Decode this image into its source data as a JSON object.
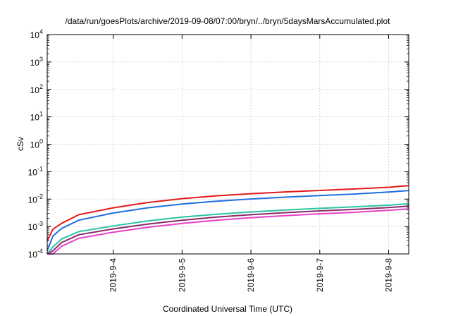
{
  "chart_data": {
    "type": "line",
    "title": "/data/run/goesPlots/archive/2019-09-08/07:00/bryn/../bryn/5daysMarsAccumulated.plot",
    "xlabel": "Coordinated Universal Time (UTC)",
    "ylabel": "cSv",
    "y_scale": "log",
    "ylim": [
      0.0001,
      10000
    ],
    "xlim": [
      "2019-09-03T01:00",
      "2019-09-08T07:00"
    ],
    "grid": true,
    "x_ticks": [
      "2019-9-4",
      "2019-9-5",
      "2019-9-6",
      "2019-9-7",
      "2019-9-8"
    ],
    "y_ticks": [
      {
        "base": "10",
        "exp": "-4"
      },
      {
        "base": "10",
        "exp": "-3"
      },
      {
        "base": "10",
        "exp": "-2"
      },
      {
        "base": "10",
        "exp": "-1"
      },
      {
        "base": "10",
        "exp": "0"
      },
      {
        "base": "10",
        "exp": "1"
      },
      {
        "base": "10",
        "exp": "2"
      },
      {
        "base": "10",
        "exp": "3"
      },
      {
        "base": "10",
        "exp": "4"
      }
    ],
    "x": [
      "2019-09-03T01:00",
      "2019-09-03T03:00",
      "2019-09-03T06:00",
      "2019-09-03T12:00",
      "2019-09-04T00:00",
      "2019-09-04T12:00",
      "2019-09-05T00:00",
      "2019-09-05T12:00",
      "2019-09-06T00:00",
      "2019-09-06T12:00",
      "2019-09-07T00:00",
      "2019-09-07T12:00",
      "2019-09-08T00:00",
      "2019-09-08T07:00"
    ],
    "series": [
      {
        "color": "#e31a1c",
        "values": [
          0.0003,
          0.0008,
          0.0013,
          0.0027,
          0.0048,
          0.0075,
          0.0104,
          0.0132,
          0.0157,
          0.0182,
          0.0207,
          0.0234,
          0.027,
          0.031
        ]
      },
      {
        "color": "#1f6fe0",
        "values": [
          0.00013,
          0.00045,
          0.00085,
          0.0017,
          0.0031,
          0.0048,
          0.0066,
          0.0084,
          0.0101,
          0.0118,
          0.0135,
          0.0153,
          0.018,
          0.0205
        ]
      },
      {
        "color": "#2bc4a0",
        "values": [
          6e-05,
          0.00018,
          0.00035,
          0.00065,
          0.00105,
          0.0016,
          0.0022,
          0.0028,
          0.0034,
          0.004,
          0.0046,
          0.0052,
          0.006,
          0.0068
        ]
      },
      {
        "color": "#8b2a6b",
        "values": [
          4e-05,
          0.00013,
          0.00026,
          0.0005,
          0.00082,
          0.00122,
          0.0017,
          0.0022,
          0.0027,
          0.0032,
          0.0037,
          0.0042,
          0.0049,
          0.0055
        ]
      },
      {
        "color": "#e840c8",
        "values": [
          3e-05,
          9e-05,
          0.00019,
          0.00037,
          0.00062,
          0.00094,
          0.0013,
          0.0017,
          0.0021,
          0.0025,
          0.0029,
          0.0033,
          0.0039,
          0.0044
        ]
      }
    ]
  }
}
